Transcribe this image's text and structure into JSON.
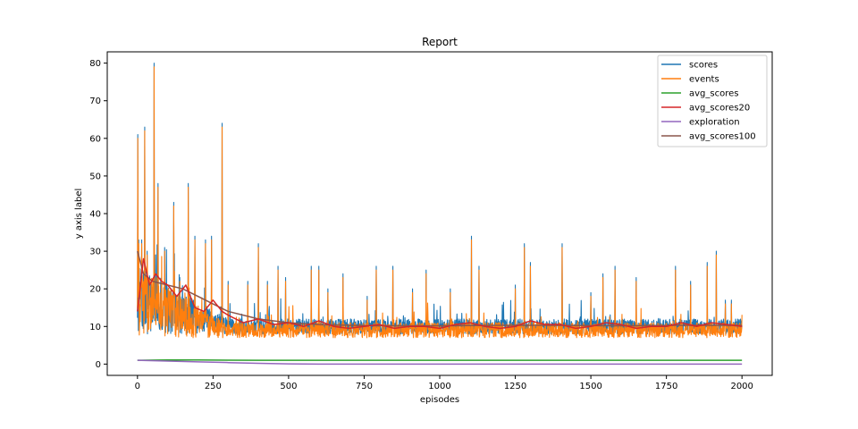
{
  "chart_data": {
    "type": "line",
    "title": "Report",
    "xlabel": "episodes",
    "ylabel": "y axis label",
    "xlim": [
      -100,
      2100
    ],
    "ylim": [
      -3,
      83
    ],
    "xticks": [
      0,
      250,
      500,
      750,
      1000,
      1250,
      1500,
      1750,
      2000
    ],
    "yticks": [
      0,
      10,
      20,
      30,
      40,
      50,
      60,
      70,
      80
    ],
    "grid": false,
    "legend_position": "top-right",
    "series": [
      {
        "name": "scores",
        "color": "#1f77b4",
        "peaks": [
          [
            1,
            61
          ],
          [
            4,
            33
          ],
          [
            14,
            33
          ],
          [
            24,
            63
          ],
          [
            32,
            30
          ],
          [
            55,
            80
          ],
          [
            68,
            48
          ],
          [
            90,
            31
          ],
          [
            120,
            43
          ],
          [
            140,
            23
          ],
          [
            168,
            48
          ],
          [
            190,
            34
          ],
          [
            225,
            33
          ],
          [
            245,
            34
          ],
          [
            280,
            64
          ],
          [
            300,
            22
          ],
          [
            365,
            22
          ],
          [
            400,
            32
          ],
          [
            430,
            22
          ],
          [
            465,
            26
          ],
          [
            490,
            23
          ],
          [
            575,
            26
          ],
          [
            600,
            26
          ],
          [
            630,
            20
          ],
          [
            680,
            24
          ],
          [
            705,
            12
          ],
          [
            760,
            18
          ],
          [
            790,
            26
          ],
          [
            845,
            26
          ],
          [
            910,
            20
          ],
          [
            955,
            25
          ],
          [
            1035,
            20
          ],
          [
            1105,
            34
          ],
          [
            1130,
            26
          ],
          [
            1250,
            21
          ],
          [
            1280,
            32
          ],
          [
            1300,
            27
          ],
          [
            1405,
            32
          ],
          [
            1500,
            19
          ],
          [
            1540,
            24
          ],
          [
            1580,
            26
          ],
          [
            1650,
            23
          ],
          [
            1780,
            26
          ],
          [
            1830,
            22
          ],
          [
            1885,
            27
          ],
          [
            1915,
            30
          ],
          [
            1945,
            17
          ],
          [
            1965,
            17
          ]
        ],
        "baseline": [
          8,
          12
        ]
      },
      {
        "name": "events",
        "color": "#ff7f0e",
        "peaks": [
          [
            1,
            60
          ],
          [
            4,
            32
          ],
          [
            14,
            32
          ],
          [
            24,
            62
          ],
          [
            32,
            29
          ],
          [
            55,
            79
          ],
          [
            68,
            47
          ],
          [
            90,
            30
          ],
          [
            120,
            42
          ],
          [
            140,
            22
          ],
          [
            168,
            47
          ],
          [
            190,
            33
          ],
          [
            225,
            32
          ],
          [
            245,
            33
          ],
          [
            280,
            63
          ],
          [
            300,
            21
          ],
          [
            365,
            21
          ],
          [
            400,
            31
          ],
          [
            430,
            21
          ],
          [
            465,
            25
          ],
          [
            490,
            22
          ],
          [
            575,
            25
          ],
          [
            600,
            25
          ],
          [
            630,
            19
          ],
          [
            680,
            23
          ],
          [
            705,
            11
          ],
          [
            760,
            17
          ],
          [
            790,
            25
          ],
          [
            845,
            25
          ],
          [
            910,
            19
          ],
          [
            955,
            24
          ],
          [
            1035,
            19
          ],
          [
            1105,
            33
          ],
          [
            1130,
            25
          ],
          [
            1250,
            20
          ],
          [
            1280,
            31
          ],
          [
            1300,
            26
          ],
          [
            1405,
            31
          ],
          [
            1500,
            18
          ],
          [
            1540,
            23
          ],
          [
            1580,
            25
          ],
          [
            1650,
            22
          ],
          [
            1780,
            25
          ],
          [
            1830,
            21
          ],
          [
            1885,
            26
          ],
          [
            1915,
            29
          ],
          [
            1945,
            16
          ],
          [
            1965,
            16
          ]
        ],
        "baseline": [
          7,
          11
        ]
      },
      {
        "name": "avg_scores",
        "color": "#2ca02c",
        "x": [
          0,
          100,
          200,
          400,
          2000
        ],
        "y": [
          1.0,
          1.1,
          1.1,
          1.0,
          1.0
        ]
      },
      {
        "name": "avg_scores20",
        "color": "#d62728",
        "x": [
          0,
          20,
          40,
          60,
          80,
          100,
          130,
          160,
          190,
          220,
          250,
          280,
          300,
          350,
          400,
          450,
          500,
          550,
          600,
          650,
          700,
          750,
          800,
          850,
          900,
          950,
          1000,
          1050,
          1100,
          1150,
          1200,
          1250,
          1300,
          1350,
          1400,
          1450,
          1500,
          1550,
          1600,
          1650,
          1700,
          1750,
          1800,
          1850,
          1900,
          1950,
          2000
        ],
        "y": [
          14,
          28,
          21,
          24,
          22,
          21,
          18,
          21,
          15,
          14,
          17,
          14,
          13,
          11,
          12,
          10.5,
          11,
          10,
          11.5,
          10,
          9.5,
          10,
          10.5,
          9.5,
          10,
          10,
          9.5,
          10.5,
          11,
          10,
          9.5,
          10,
          11.5,
          10.5,
          10.5,
          9.5,
          10,
          11,
          10.5,
          9.5,
          10,
          10,
          11,
          10,
          11,
          10.5,
          10
        ]
      },
      {
        "name": "exploration",
        "color": "#9467bd",
        "x": [
          0,
          100,
          200,
          300,
          400,
          500,
          600,
          2000
        ],
        "y": [
          1.0,
          0.8,
          0.6,
          0.4,
          0.2,
          0.05,
          0.0,
          0.0
        ]
      },
      {
        "name": "avg_scores100",
        "color": "#8c564b",
        "x": [
          0,
          20,
          50,
          100,
          150,
          200,
          250,
          300,
          350,
          400,
          450,
          500,
          600,
          700,
          800,
          900,
          1000,
          1200,
          1400,
          1600,
          1800,
          2000
        ],
        "y": [
          30,
          24,
          22,
          21,
          20,
          18,
          16,
          14,
          13,
          12,
          11.5,
          11,
          10.5,
          10.3,
          10.2,
          10.2,
          10.2,
          10.3,
          10.3,
          10.2,
          10.3,
          10.3
        ]
      }
    ]
  }
}
